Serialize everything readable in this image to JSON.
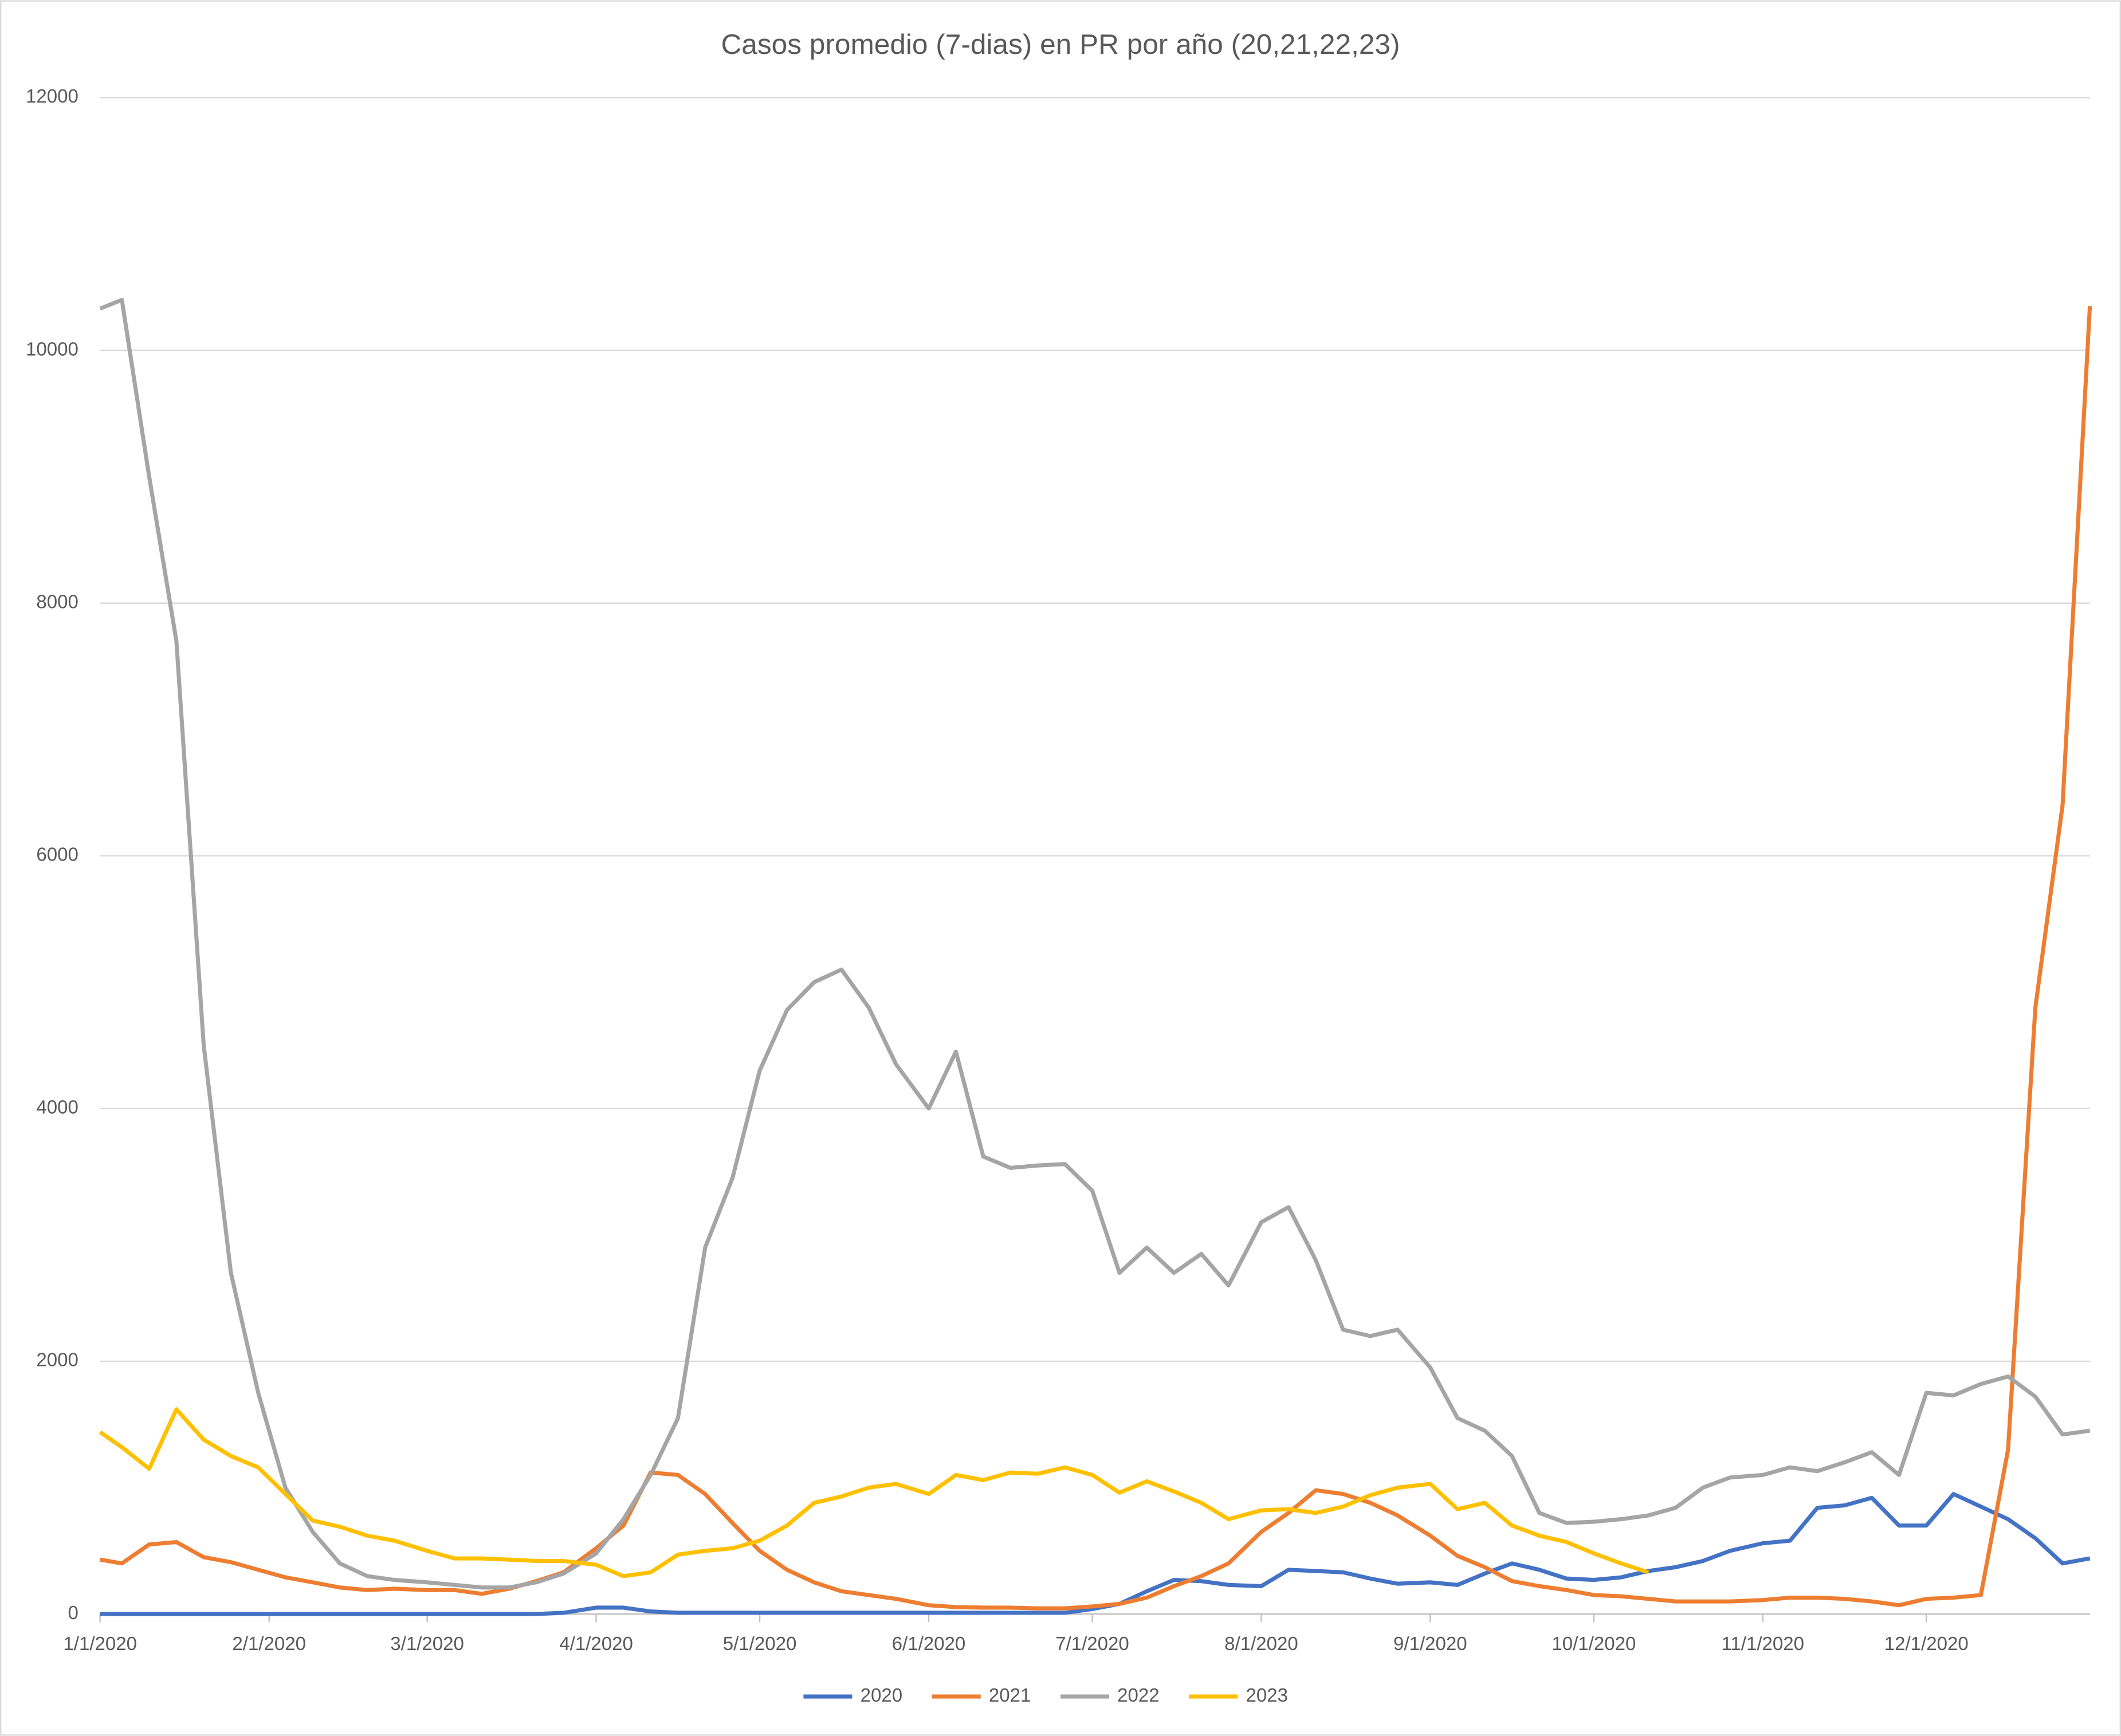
{
  "chart_data": {
    "type": "line",
    "title": "Casos promedio (7-dias) en PR por año (20,21,22,23)",
    "x": [
      "1/1/2020",
      "1/5/2020",
      "1/10/2020",
      "1/15/2020",
      "1/20/2020",
      "1/25/2020",
      "1/30/2020",
      "2/4/2020",
      "2/9/2020",
      "2/14/2020",
      "2/19/2020",
      "2/24/2020",
      "3/1/2020",
      "3/6/2020",
      "3/11/2020",
      "3/16/2020",
      "3/21/2020",
      "3/26/2020",
      "4/1/2020",
      "4/6/2020",
      "4/11/2020",
      "4/16/2020",
      "4/21/2020",
      "4/26/2020",
      "5/1/2020",
      "5/6/2020",
      "5/11/2020",
      "5/16/2020",
      "5/21/2020",
      "5/26/2020",
      "6/1/2020",
      "6/6/2020",
      "6/11/2020",
      "6/16/2020",
      "6/21/2020",
      "6/26/2020",
      "7/1/2020",
      "7/6/2020",
      "7/11/2020",
      "7/16/2020",
      "7/21/2020",
      "7/26/2020",
      "8/1/2020",
      "8/6/2020",
      "8/11/2020",
      "8/16/2020",
      "8/21/2020",
      "8/26/2020",
      "9/1/2020",
      "9/6/2020",
      "9/11/2020",
      "9/16/2020",
      "9/21/2020",
      "9/26/2020",
      "10/1/2020",
      "10/6/2020",
      "10/11/2020",
      "10/16/2020",
      "10/21/2020",
      "10/26/2020",
      "11/1/2020",
      "11/6/2020",
      "11/11/2020",
      "11/16/2020",
      "11/21/2020",
      "11/26/2020",
      "12/1/2020",
      "12/6/2020",
      "12/11/2020",
      "12/16/2020",
      "12/21/2020",
      "12/26/2020",
      "12/31/2020"
    ],
    "series": [
      {
        "name": "2020",
        "color": "#4472c4",
        "values": [
          0,
          0,
          0,
          0,
          0,
          0,
          0,
          0,
          0,
          0,
          0,
          0,
          0,
          0,
          0,
          0,
          0,
          10,
          50,
          50,
          20,
          10,
          10,
          10,
          10,
          10,
          10,
          10,
          10,
          10,
          10,
          10,
          10,
          10,
          10,
          10,
          40,
          80,
          180,
          270,
          260,
          230,
          220,
          350,
          340,
          330,
          280,
          240,
          250,
          230,
          320,
          400,
          350,
          280,
          270,
          290,
          340,
          370,
          420,
          500,
          560,
          580,
          840,
          860,
          920,
          700,
          700,
          950,
          850,
          750,
          600,
          400,
          440
        ]
      },
      {
        "name": "2021",
        "color": "#ed7d31",
        "values": [
          430,
          400,
          550,
          570,
          450,
          410,
          350,
          290,
          250,
          210,
          190,
          200,
          190,
          190,
          160,
          200,
          260,
          330,
          520,
          700,
          1120,
          1100,
          950,
          720,
          500,
          350,
          250,
          180,
          150,
          120,
          70,
          55,
          50,
          50,
          45,
          45,
          60,
          80,
          130,
          220,
          300,
          400,
          650,
          800,
          980,
          950,
          880,
          780,
          620,
          460,
          370,
          260,
          220,
          190,
          150,
          140,
          120,
          100,
          100,
          100,
          110,
          130,
          130,
          120,
          100,
          70,
          120,
          130,
          150,
          1300,
          4800,
          6400,
          10350
        ]
      },
      {
        "name": "2022",
        "color": "#a5a5a5",
        "values": [
          10330,
          10400,
          9000,
          7700,
          4500,
          2700,
          1750,
          1000,
          650,
          400,
          300,
          270,
          250,
          230,
          210,
          210,
          250,
          320,
          480,
          750,
          1100,
          1550,
          2900,
          3450,
          4300,
          4780,
          5000,
          5100,
          4800,
          4350,
          4000,
          4450,
          3620,
          3530,
          3550,
          3560,
          3350,
          2700,
          2900,
          2700,
          2850,
          2600,
          3100,
          3220,
          2800,
          2250,
          2200,
          2250,
          1950,
          1550,
          1450,
          1250,
          800,
          720,
          730,
          750,
          780,
          840,
          1000,
          1080,
          1100,
          1160,
          1130,
          1200,
          1280,
          1100,
          1750,
          1730,
          1820,
          1880,
          1720,
          1420,
          1450
        ]
      },
      {
        "name": "2023",
        "color": "#ffc000",
        "values": [
          1440,
          1320,
          1150,
          1620,
          1380,
          1250,
          1160,
          950,
          740,
          690,
          620,
          580,
          500,
          440,
          440,
          430,
          420,
          420,
          390,
          300,
          330,
          470,
          500,
          520,
          580,
          700,
          880,
          930,
          1000,
          1030,
          950,
          1100,
          1060,
          1120,
          1110,
          1160,
          1100,
          960,
          1050,
          970,
          880,
          750,
          820,
          830,
          800,
          850,
          940,
          1000,
          1030,
          830,
          880,
          700,
          620,
          570,
          480,
          400,
          330,
          null,
          null,
          null,
          null,
          null,
          null,
          null,
          null,
          null,
          null,
          null,
          null,
          null,
          null,
          null,
          null
        ]
      }
    ],
    "xlim": [
      "1/1/2020",
      "12/31/2020"
    ],
    "xticks": [
      "1/1/2020",
      "2/1/2020",
      "3/1/2020",
      "4/1/2020",
      "5/1/2020",
      "6/1/2020",
      "7/1/2020",
      "8/1/2020",
      "9/1/2020",
      "10/1/2020",
      "11/1/2020",
      "12/1/2020"
    ],
    "ylim": [
      0,
      12000
    ],
    "yticks": [
      0,
      2000,
      4000,
      6000,
      8000,
      10000,
      12000
    ],
    "grid": true,
    "legend": "bottom"
  }
}
